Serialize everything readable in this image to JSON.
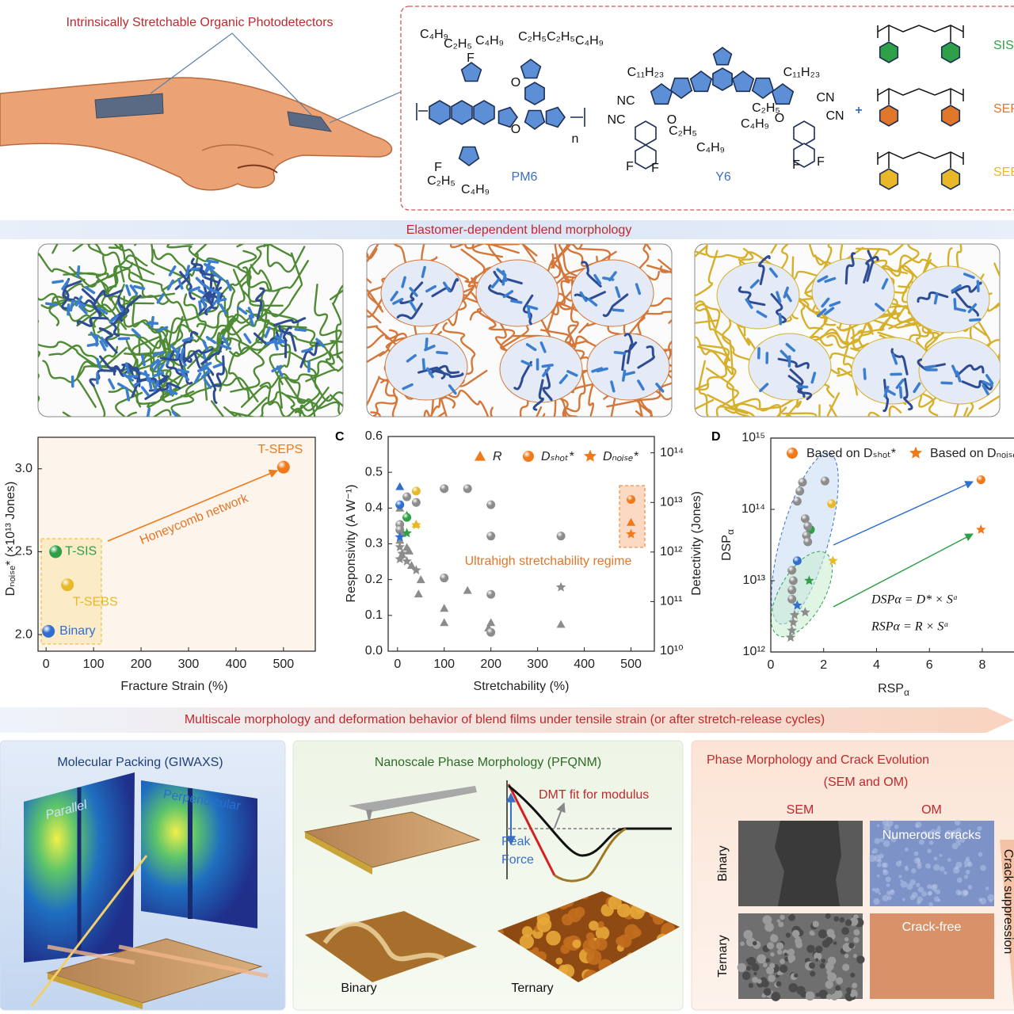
{
  "header": {
    "title": "Intrinsically Stretchable Organic Photodetectors"
  },
  "molecules": {
    "names": [
      "PM6",
      "Y6"
    ],
    "labels": [
      "C₄H₉",
      "C₂H₅",
      "F",
      "C₄H₉",
      "C₂H₅",
      "C₂H₅",
      "C₄H₉",
      "O",
      "O",
      "n",
      "F",
      "C₂H₅",
      "C₄H₉",
      "C₁₁H₂₃",
      "C₁₁H₂₃",
      "NC",
      "NC",
      "CN",
      "CN",
      "C₂H₅",
      "C₄H₉",
      "C₂H₅",
      "C₄H₉",
      "O",
      "O",
      "F",
      "F",
      "F",
      "F"
    ],
    "elastomers": [
      "SIS",
      "SEPS",
      "SEBS"
    ]
  },
  "morphology": {
    "title": "Elastomer-dependent blend morphology"
  },
  "chart_data": [
    {
      "type": "scatter",
      "ylabel": "Dₙₒᵢₛₑ* (×10¹³ Jones)",
      "xlabel": "Fracture Strain (%)",
      "xlim": [
        -17,
        567
      ],
      "ylim": [
        1.9,
        3.19
      ],
      "xticks": [
        0,
        100,
        200,
        300,
        400,
        500
      ],
      "yticks": [
        {
          "value": 2,
          "label": "2.0"
        },
        2.5,
        {
          "value": 3,
          "label": "3.0"
        }
      ],
      "categories": [
        "Binary",
        "T-SEBS",
        "T-SIS",
        "T-SEPS"
      ],
      "x": [
        5,
        45,
        20,
        500
      ],
      "values": [
        2.02,
        2.3,
        2.5,
        3.01
      ],
      "colors": [
        "#2f6fd0",
        "#e8b828",
        "#2ea048",
        "#f07a1a"
      ],
      "annotation": "Honeycomb network"
    },
    {
      "type": "scatter",
      "label": "C",
      "xlabel": "Stretchability (%)",
      "ylabel": "Responsivity (A W⁻¹)",
      "y2label": "Detectivity (Jones)",
      "xlim": [
        -20,
        550
      ],
      "ylim": [
        0,
        0.6
      ],
      "y2lim": [
        10000000000.0,
        214000000000000.0
      ],
      "y2log": true,
      "xticks": [
        0,
        100,
        200,
        300,
        400,
        500
      ],
      "yticks": [
        {
          "value": 0,
          "label": "0.0"
        },
        0.1,
        0.2,
        0.3,
        0.4,
        0.5,
        0.6
      ],
      "y2ticks": [
        {
          "value": 10000000000.0,
          "label": "10¹⁰"
        },
        {
          "value": 100000000000.0,
          "label": "10¹¹"
        },
        {
          "value": 1000000000000.0,
          "label": "10¹²"
        },
        {
          "value": 10000000000000.0,
          "label": "10¹³"
        },
        {
          "value": 100000000000000.0,
          "label": "10¹⁴"
        }
      ],
      "legend_color": "#f07a1a",
      "annotation": "Ultrahigh stretchability regime",
      "series": [
        {
          "name": "R",
          "marker": "triangle",
          "axis": "y",
          "x": [
            5,
            20,
            40,
            500,
            5,
            10,
            5,
            10,
            20,
            25,
            30,
            45,
            50,
            100,
            100,
            150,
            200,
            195,
            350
          ],
          "values": [
            0.46,
            0.38,
            0.355,
            0.36,
            0.4,
            0.33,
            0.31,
            0.27,
            0.29,
            0.28,
            0.24,
            0.16,
            0.2,
            0.12,
            0.08,
            0.17,
            0.08,
            0.065,
            0.075
          ],
          "point_colors": [
            "#2f6fd0",
            "#2ea048",
            "#e8b828",
            "#f07a1a",
            "#8c8c8c",
            "#8c8c8c",
            "#8c8c8c",
            "#8c8c8c",
            "#8c8c8c",
            "#8c8c8c",
            "#8c8c8c",
            "#8c8c8c",
            "#8c8c8c",
            "#8c8c8c",
            "#8c8c8c",
            "#8c8c8c",
            "#8c8c8c",
            "#8c8c8c",
            "#8c8c8c"
          ]
        },
        {
          "name": "Dₛₕₒₜ*",
          "marker": "circle",
          "axis": "y2",
          "x": [
            5,
            20,
            40,
            500,
            5,
            20,
            40,
            100,
            150,
            200,
            200,
            350,
            100,
            200,
            5,
            200
          ],
          "values": [
            9000000000000.0,
            5000000000000.0,
            17000000000000.0,
            11500000000000.0,
            3600000000000.0,
            13000000000000.0,
            10000000000000.0,
            19000000000000.0,
            19000000000000.0,
            9000000000000.0,
            2100000000000.0,
            2100000000000.0,
            300000000000.0,
            140000000000.0,
            2800000000000.0,
            24000000000.0
          ],
          "point_colors": [
            "#2f6fd0",
            "#2ea048",
            "#e8b828",
            "#f07a1a",
            "#8c8c8c",
            "#8c8c8c",
            "#8c8c8c",
            "#8c8c8c",
            "#8c8c8c",
            "#8c8c8c",
            "#8c8c8c",
            "#8c8c8c",
            "#8c8c8c",
            "#8c8c8c",
            "#8c8c8c",
            "#8c8c8c"
          ]
        },
        {
          "name": "Dₙₒᵢₛₑ*",
          "marker": "star",
          "axis": "y2",
          "x": [
            5,
            20,
            40,
            500,
            5,
            10,
            20,
            40,
            5,
            350
          ],
          "values": [
            2000000000000.0,
            2400000000000.0,
            3500000000000.0,
            2300000000000.0,
            1260000000000.0,
            930000000000.0,
            650000000000.0,
            430000000000.0,
            720000000000.0,
            195000000000.0
          ],
          "point_colors": [
            "#2f6fd0",
            "#2ea048",
            "#e8b828",
            "#f07a1a",
            "#8c8c8c",
            "#8c8c8c",
            "#8c8c8c",
            "#8c8c8c",
            "#8c8c8c",
            "#8c8c8c"
          ]
        }
      ]
    },
    {
      "type": "scatter",
      "label": "D",
      "xlabel": {
        "base": "RSP",
        "sub": "α"
      },
      "ylabel": {
        "base": "DSP",
        "sub": "α"
      },
      "xlim": [
        0,
        9.2
      ],
      "ylim": [
        1000000000000.0,
        1000000000000000.0
      ],
      "ylog": true,
      "xticks": [
        0,
        2,
        4,
        6,
        8
      ],
      "yticks": [
        {
          "value": 1000000000000.0,
          "label": "10¹²"
        },
        {
          "value": 10000000000000.0,
          "label": "10¹³"
        },
        {
          "value": 100000000000000.0,
          "label": "10¹⁴"
        },
        {
          "value": 1000000000000000.0,
          "label": "10¹⁵"
        }
      ],
      "legend_color": "#f07a1a",
      "equations": [
        "DSPα = D* × Sᵅ",
        "RSPα = R × Sᵅ"
      ],
      "series": [
        {
          "name": "Based on Dₛₕₒₜ*",
          "marker": "circle",
          "x": [
            2.3,
            1.5,
            1.0,
            7.95,
            1.2,
            2.05,
            1.1,
            1.0,
            1.3,
            1.4,
            1.35,
            1.4,
            0.8,
            0.85,
            0.8,
            0.8
          ],
          "values": [
            120000000000000.0,
            52000000000000.0,
            19000000000000.0,
            260000000000000.0,
            240000000000000.0,
            250000000000000.0,
            180000000000000.0,
            130000000000000.0,
            74000000000000.0,
            58000000000000.0,
            43000000000000.0,
            35000000000000.0,
            14000000000000.0,
            10000000000000.0,
            7400000000000.0,
            5500000000000.0
          ],
          "point_colors": [
            "#e8b828",
            "#2ea048",
            "#2f6fd0",
            "#f07a1a",
            "#8c8c8c",
            "#8c8c8c",
            "#8c8c8c",
            "#8c8c8c",
            "#8c8c8c",
            "#8c8c8c",
            "#8c8c8c",
            "#8c8c8c",
            "#8c8c8c",
            "#8c8c8c",
            "#8c8c8c",
            "#8c8c8c"
          ]
        },
        {
          "name": "Based on Dₙₒᵢₛₑ*",
          "marker": "star",
          "x": [
            2.35,
            1.45,
            1.0,
            7.95,
            0.85,
            0.8,
            0.75,
            0.9,
            1.3
          ],
          "values": [
            19000000000000.0,
            10000000000000.0,
            4500000000000.0,
            52000000000000.0,
            2600000000000.0,
            2000000000000.0,
            1600000000000.0,
            3300000000000.0,
            3600000000000.0
          ],
          "point_colors": [
            "#e8b828",
            "#2ea048",
            "#2f6fd0",
            "#f07a1a",
            "#8c8c8c",
            "#8c8c8c",
            "#8c8c8c",
            "#8c8c8c",
            "#8c8c8c"
          ]
        }
      ]
    }
  ],
  "multiscale": {
    "title": "Multiscale morphology and deformation behavior of blend films under tensile strain (or after stretch-release cycles)",
    "panels": [
      {
        "title": [
          "Molecular Packing (GIWAXS)"
        ],
        "labels": [
          "Parallel",
          "Perpendicular"
        ]
      },
      {
        "title": [
          "Nanoscale Phase Morphology (PFQNM)"
        ],
        "labels": [
          "DMT fit for modulus",
          "Peak",
          "Force",
          "Binary",
          "Ternary"
        ]
      },
      {
        "title": [
          "Phase Morphology and Crack Evolution",
          "(SEM and OM)"
        ],
        "labels": [
          "SEM",
          "OM",
          "Binary",
          "Ternary",
          "Numerous cracks",
          "Crack-free",
          "Crack suppression"
        ]
      }
    ]
  }
}
